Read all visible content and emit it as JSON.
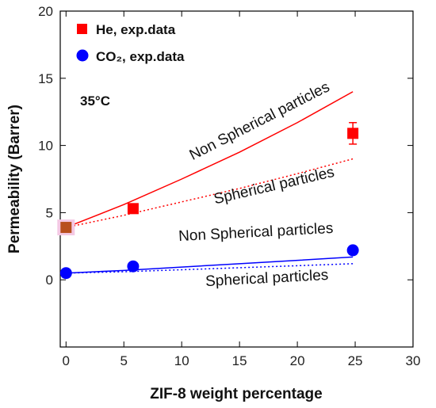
{
  "chart_data": {
    "type": "scatter",
    "xlabel": "ZIF-8 weight percentage",
    "ylabel": "Permeability (Barrer)",
    "xlim": [
      -0.5,
      30
    ],
    "ylim": [
      -5,
      20
    ],
    "xticks": [
      0,
      5,
      10,
      15,
      20,
      25,
      30
    ],
    "yticks": [
      0,
      5,
      10,
      15,
      20
    ],
    "temperature_label": "35°C",
    "series": [
      {
        "name": "He, exp.data",
        "marker": "square",
        "color": "#ff0000",
        "points": [
          {
            "x": 0,
            "y": 3.9,
            "err": 0.5
          },
          {
            "x": 5.8,
            "y": 5.3,
            "err": 0.2
          },
          {
            "x": 24.8,
            "y": 10.9,
            "err": 0.8
          }
        ]
      },
      {
        "name": "CO₂, exp.data",
        "marker": "circle",
        "color": "#0000ff",
        "points": [
          {
            "x": 0,
            "y": 0.5,
            "err": 0.3
          },
          {
            "x": 5.8,
            "y": 1.0,
            "err": 0.2
          },
          {
            "x": 24.8,
            "y": 2.2,
            "err": 0.3
          }
        ]
      }
    ],
    "model_curves": [
      {
        "label": "Non Spherical particles",
        "gas": "He",
        "style": "solid",
        "color": "#ff0000",
        "x": [
          0,
          5,
          10,
          15,
          20,
          24.8
        ],
        "y": [
          3.9,
          5.6,
          7.5,
          9.5,
          11.7,
          14.0
        ]
      },
      {
        "label": "Spherical particles",
        "gas": "He",
        "style": "dotted",
        "color": "#ff0000",
        "x": [
          0,
          5,
          10,
          15,
          20,
          24.8
        ],
        "y": [
          3.9,
          4.8,
          5.8,
          6.8,
          7.9,
          9.0
        ]
      },
      {
        "label": "Non Spherical particles",
        "gas": "CO₂",
        "style": "solid",
        "color": "#0000ff",
        "x": [
          0,
          5,
          10,
          15,
          20,
          24.8
        ],
        "y": [
          0.5,
          0.7,
          0.95,
          1.2,
          1.45,
          1.7
        ]
      },
      {
        "label": "Spherical particles",
        "gas": "CO₂",
        "style": "dotted",
        "color": "#0000ff",
        "x": [
          0,
          5,
          10,
          15,
          20,
          24.8
        ],
        "y": [
          0.5,
          0.6,
          0.75,
          0.9,
          1.05,
          1.2
        ]
      }
    ],
    "legend": {
      "position": "top-left",
      "entries": [
        "He, exp.data",
        "CO₂, exp.data"
      ]
    },
    "grid": false
  }
}
